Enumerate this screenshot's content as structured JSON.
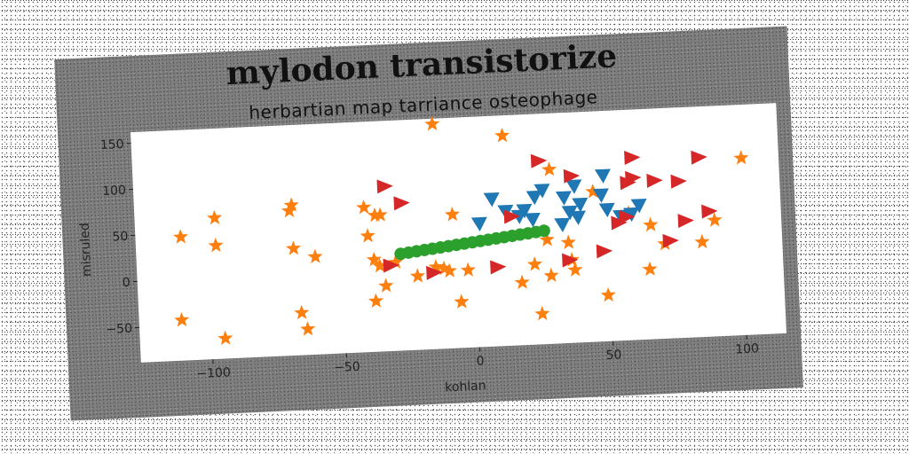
{
  "chart_data": {
    "type": "scatter",
    "title": "mylodon transistorize",
    "subtitle": "herbartian map tarriance osteophage",
    "xlabel": "kohlan",
    "ylabel": "misruled",
    "xlim": [
      -127,
      115
    ],
    "ylim": [
      -88,
      162
    ],
    "xticks": [
      -100,
      -50,
      0,
      50,
      100
    ],
    "yticks": [
      -50,
      0,
      50,
      100,
      150
    ],
    "grid": false,
    "legend": "none",
    "series": [
      {
        "marker": "star",
        "color": "#ff7f0e",
        "points": [
          [
            -14,
            156
          ],
          [
            12,
            140
          ],
          [
            -110,
            46
          ],
          [
            -97,
            65
          ],
          [
            -97,
            35
          ],
          [
            -68,
            75
          ],
          [
            -69,
            69
          ],
          [
            -68,
            28
          ],
          [
            -60,
            18
          ],
          [
            -41,
            69
          ],
          [
            -37,
            60
          ],
          [
            -35,
            60
          ],
          [
            -40,
            38
          ],
          [
            -38,
            12
          ],
          [
            -36,
            5
          ],
          [
            -34,
            -17
          ],
          [
            -38,
            -33
          ],
          [
            -10,
            -4
          ],
          [
            -15,
            1
          ],
          [
            -8,
            57
          ],
          [
            -30,
            8
          ],
          [
            -12,
            -1
          ],
          [
            -3,
            -4
          ],
          [
            -6,
            -38
          ],
          [
            17,
            -20
          ],
          [
            22,
            -1
          ],
          [
            27,
            25
          ],
          [
            29,
            101
          ],
          [
            35,
            21
          ],
          [
            45,
            75
          ],
          [
            36,
            2
          ],
          [
            37,
            -9
          ],
          [
            49,
            -38
          ],
          [
            58,
            50
          ],
          [
            66,
            36
          ],
          [
            71,
            15
          ],
          [
            85,
            15
          ],
          [
            90,
            38
          ],
          [
            101,
            104
          ],
          [
            65,
            -12
          ],
          [
            -111,
            -44
          ],
          [
            -95,
            -66
          ],
          [
            -66,
            -42
          ],
          [
            -64,
            -60
          ],
          [
            24,
            -55
          ],
          [
            28,
            -14
          ],
          [
            -22,
            -8
          ]
        ]
      },
      {
        "marker": "triangle-down",
        "color": "#1f77b4",
        "points": [
          [
            7,
            72
          ],
          [
            2,
            46
          ],
          [
            17,
            52
          ],
          [
            22,
            48
          ],
          [
            23,
            72
          ],
          [
            26,
            79
          ],
          [
            34,
            70
          ],
          [
            38,
            82
          ],
          [
            40,
            62
          ],
          [
            36,
            54
          ],
          [
            39,
            48
          ],
          [
            33,
            41
          ],
          [
            49,
            92
          ],
          [
            48,
            71
          ],
          [
            50,
            55
          ],
          [
            55,
            47
          ],
          [
            59,
            49
          ],
          [
            62,
            58
          ],
          [
            19,
            58
          ],
          [
            12,
            58
          ]
        ]
      },
      {
        "marker": "triangle-right",
        "color": "#d62728",
        "points": [
          [
            -33,
            91
          ],
          [
            -27,
            72
          ],
          [
            -32,
            5
          ],
          [
            -16,
            -5
          ],
          [
            8,
            -2
          ],
          [
            14,
            52
          ],
          [
            25,
            111
          ],
          [
            37,
            93
          ],
          [
            48,
            10
          ],
          [
            60,
            110
          ],
          [
            58,
            83
          ],
          [
            60,
            88
          ],
          [
            68,
            84
          ],
          [
            77,
            82
          ],
          [
            85,
            107
          ],
          [
            88,
            48
          ],
          [
            79,
            39
          ],
          [
            73,
            18
          ],
          [
            57,
            46
          ],
          [
            54,
            40
          ],
          [
            35,
            2
          ]
        ]
      },
      {
        "marker": "circle",
        "color": "#2ca02c",
        "points": [
          [
            -28,
            17
          ],
          [
            -25,
            18
          ],
          [
            -22,
            19
          ],
          [
            -19,
            20
          ],
          [
            -16,
            21
          ],
          [
            -13,
            22
          ],
          [
            -10,
            23
          ],
          [
            -7,
            24
          ],
          [
            -4,
            25
          ],
          [
            -1,
            26
          ],
          [
            2,
            27
          ],
          [
            5,
            28
          ],
          [
            8,
            29
          ],
          [
            11,
            30
          ],
          [
            14,
            31
          ],
          [
            17,
            32
          ],
          [
            20,
            33
          ],
          [
            23,
            34
          ],
          [
            26,
            35
          ]
        ]
      }
    ]
  }
}
